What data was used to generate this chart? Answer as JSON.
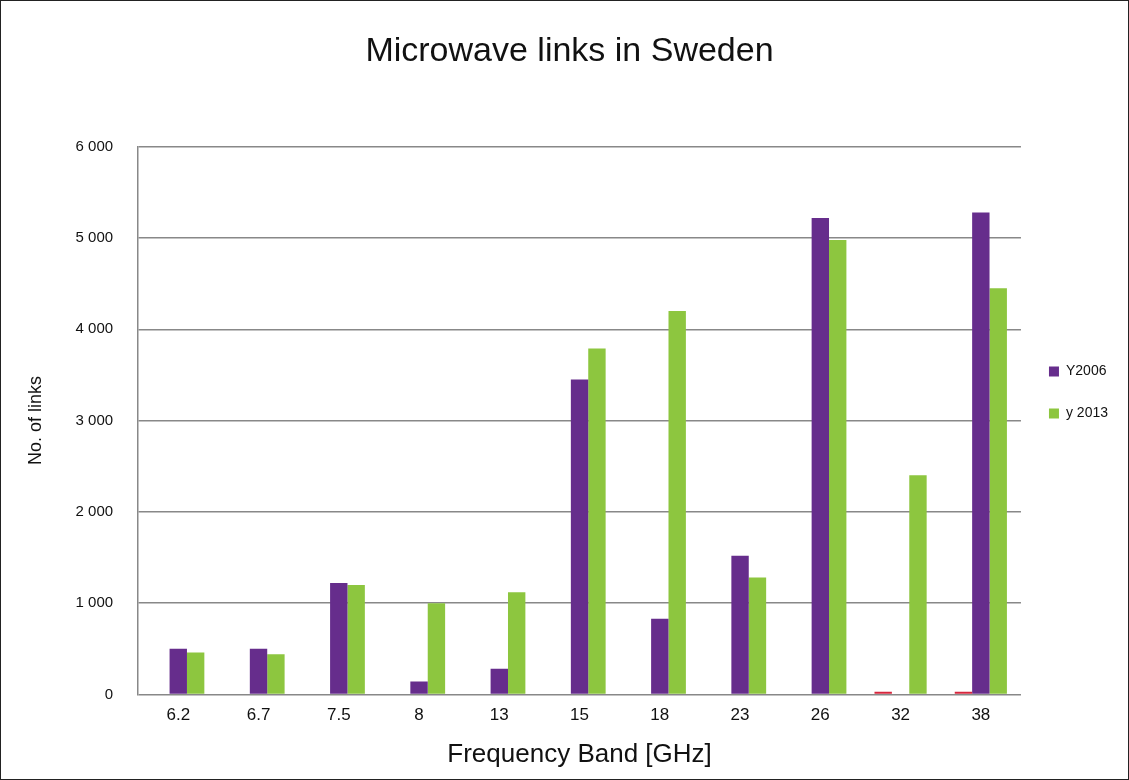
{
  "chart_data": {
    "type": "bar",
    "title": "Microwave links in Sweden",
    "xlabel": "Frequency Band [GHz]",
    "ylabel": "No. of links",
    "categories": [
      "6.2",
      "6.7",
      "7.5",
      "8",
      "13",
      "15",
      "18",
      "23",
      "26",
      "32",
      "38"
    ],
    "series": [
      {
        "color": "#d7263d",
        "values": [
          0,
          0,
          0,
          0,
          0,
          0,
          0,
          0,
          0,
          30,
          30
        ]
      },
      {
        "name": "Y2006",
        "color": "#662d8c",
        "values": [
          500,
          500,
          1220,
          140,
          280,
          3450,
          830,
          1520,
          5220,
          0,
          5280
        ]
      },
      {
        "name": "y 2013",
        "color": "#8dc63f",
        "values": [
          460,
          440,
          1200,
          1000,
          1120,
          3790,
          4200,
          1280,
          4980,
          2400,
          4450
        ]
      }
    ],
    "ylim": [
      0,
      6000
    ],
    "yticks": [
      0,
      {
        "value": 1000,
        "label": "1 000"
      },
      {
        "value": 2000,
        "label": "2 000"
      },
      {
        "value": 3000,
        "label": "3 000"
      },
      {
        "value": 4000,
        "label": "4 000"
      },
      {
        "value": 5000,
        "label": "5 000"
      },
      {
        "value": 6000,
        "label": "6 000"
      }
    ],
    "grid": "y",
    "legend": "right"
  }
}
